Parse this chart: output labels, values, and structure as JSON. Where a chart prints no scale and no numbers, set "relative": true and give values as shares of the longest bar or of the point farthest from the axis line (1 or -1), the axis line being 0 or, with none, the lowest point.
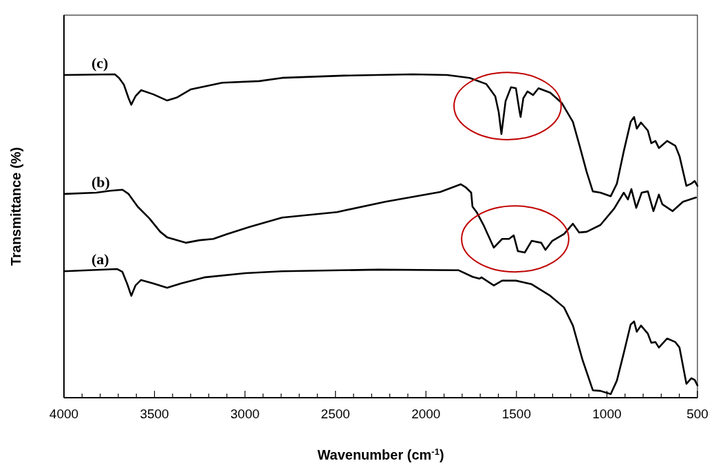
{
  "chart_data": {
    "type": "line",
    "relative": true,
    "xlabel": "Wavenumber (cm$^{-1}$)",
    "ylabel": "Transmittance (%)",
    "xlim": [
      4000,
      500
    ],
    "xticks": [
      4000,
      {
        "value": 3900,
        "label": null
      },
      {
        "value": 3800,
        "label": null
      },
      {
        "value": 3700,
        "label": null
      },
      {
        "value": 3600,
        "label": null
      },
      3500,
      {
        "value": 3400,
        "label": null
      },
      {
        "value": 3300,
        "label": null
      },
      {
        "value": 3200,
        "label": null
      },
      {
        "value": 3100,
        "label": null
      },
      3000,
      {
        "value": 2900,
        "label": null
      },
      {
        "value": 2800,
        "label": null
      },
      {
        "value": 2700,
        "label": null
      },
      {
        "value": 2600,
        "label": null
      },
      2500,
      {
        "value": 2400,
        "label": null
      },
      {
        "value": 2300,
        "label": null
      },
      {
        "value": 2200,
        "label": null
      },
      {
        "value": 2100,
        "label": null
      },
      2000,
      {
        "value": 1900,
        "label": null
      },
      {
        "value": 1800,
        "label": null
      },
      {
        "value": 1700,
        "label": null
      },
      {
        "value": 1600,
        "label": null
      },
      1500,
      {
        "value": 1400,
        "label": null
      },
      {
        "value": 1300,
        "label": null
      },
      {
        "value": 1200,
        "label": null
      },
      {
        "value": 1100,
        "label": null
      },
      1000,
      {
        "value": 900,
        "label": null
      },
      {
        "value": 800,
        "label": null
      },
      {
        "value": 700,
        "label": null
      },
      {
        "value": 600,
        "label": null
      },
      500
    ],
    "grid": false,
    "marker": "none",
    "line_style": "solid",
    "series": [
      {
        "name": "(a)",
        "color": "#000000",
        "x": [
          4000,
          3707,
          3677,
          3650,
          3628,
          3605,
          3574,
          3506,
          3430,
          3354,
          3225,
          2997,
          2795,
          2263,
          1819,
          1743,
          1705,
          1693,
          1625,
          1579,
          1503,
          1416,
          1313,
          1237,
          1188,
          1135,
          1078,
          1036,
          979,
          945,
          907,
          869,
          850,
          835,
          812,
          774,
          755,
          732,
          713,
          667,
          622,
          599,
          561,
          534,
          515,
          500
        ],
        "values": [
          0.391,
          0.398,
          0.389,
          0.351,
          0.315,
          0.347,
          0.364,
          0.353,
          0.34,
          0.353,
          0.372,
          0.385,
          0.391,
          0.396,
          0.394,
          0.374,
          0.368,
          0.372,
          0.347,
          0.362,
          0.362,
          0.351,
          0.315,
          0.279,
          0.223,
          0.117,
          0.023,
          0.021,
          0.011,
          0.053,
          0.138,
          0.226,
          0.236,
          0.204,
          0.223,
          0.198,
          0.17,
          0.172,
          0.155,
          0.183,
          0.172,
          0.155,
          0.043,
          0.06,
          0.055,
          0.038
        ]
      },
      {
        "name": "(b)",
        "color": "#000000",
        "x": [
          4000,
          3821,
          3745,
          3677,
          3643,
          3593,
          3529,
          3468,
          3430,
          3327,
          3251,
          3175,
          3099,
          2974,
          2795,
          2491,
          2225,
          1921,
          1807,
          1781,
          1750,
          1743,
          1720,
          1682,
          1625,
          1579,
          1541,
          1515,
          1492,
          1454,
          1416,
          1363,
          1340,
          1302,
          1237,
          1188,
          1154,
          1112,
          1036,
          960,
          907,
          884,
          865,
          838,
          808,
          774,
          743,
          713,
          694,
          637,
          580,
          508
        ],
        "values": [
          0.63,
          0.634,
          0.64,
          0.643,
          0.63,
          0.591,
          0.555,
          0.513,
          0.496,
          0.479,
          0.487,
          0.491,
          0.506,
          0.528,
          0.557,
          0.574,
          0.606,
          0.636,
          0.66,
          0.651,
          0.634,
          0.591,
          0.574,
          0.534,
          0.464,
          0.491,
          0.491,
          0.502,
          0.453,
          0.449,
          0.485,
          0.479,
          0.457,
          0.485,
          0.506,
          0.538,
          0.511,
          0.513,
          0.534,
          0.585,
          0.634,
          0.613,
          0.645,
          0.587,
          0.634,
          0.638,
          0.577,
          0.628,
          0.598,
          0.577,
          0.606,
          0.619
        ]
      },
      {
        "name": "(c)",
        "color": "#000000",
        "x": [
          4000,
          3719,
          3696,
          3669,
          3643,
          3628,
          3605,
          3574,
          3506,
          3430,
          3377,
          3301,
          3126,
          2921,
          2795,
          2453,
          2073,
          1883,
          1758,
          1667,
          1617,
          1598,
          1583,
          1560,
          1530,
          1503,
          1484,
          1477,
          1462,
          1439,
          1408,
          1378,
          1313,
          1249,
          1188,
          1150,
          1112,
          1078,
          1036,
          979,
          945,
          907,
          869,
          850,
          835,
          812,
          774,
          755,
          732,
          713,
          667,
          622,
          599,
          561,
          534,
          515,
          500
        ],
        "values": [
          0.998,
          1.0,
          0.989,
          0.968,
          0.926,
          0.906,
          0.932,
          0.951,
          0.938,
          0.919,
          0.928,
          0.953,
          0.974,
          0.979,
          0.989,
          0.996,
          1.0,
          0.998,
          0.989,
          0.97,
          0.932,
          0.883,
          0.815,
          0.917,
          0.96,
          0.957,
          0.889,
          0.868,
          0.926,
          0.947,
          0.936,
          0.957,
          0.943,
          0.911,
          0.853,
          0.777,
          0.698,
          0.638,
          0.634,
          0.623,
          0.662,
          0.762,
          0.853,
          0.868,
          0.832,
          0.851,
          0.826,
          0.787,
          0.794,
          0.772,
          0.794,
          0.779,
          0.747,
          0.655,
          0.662,
          0.67,
          0.655
        ]
      }
    ]
  }
}
